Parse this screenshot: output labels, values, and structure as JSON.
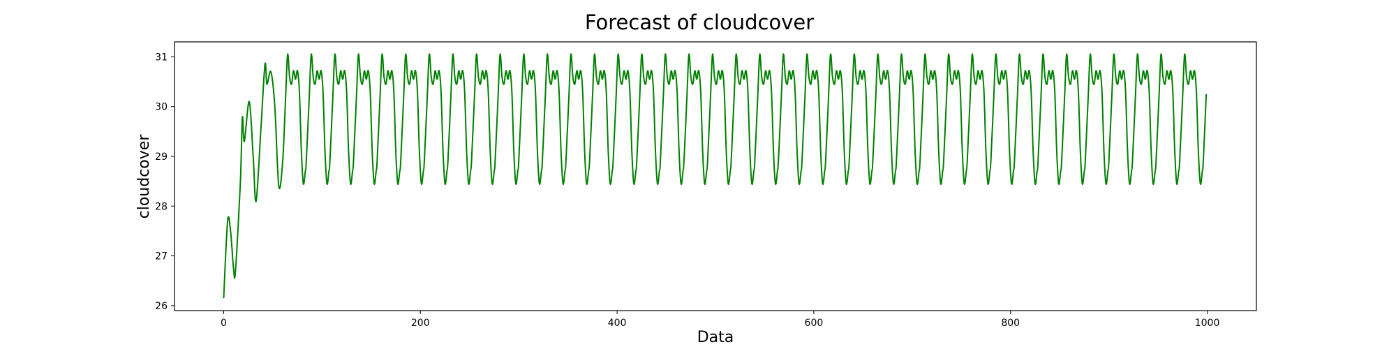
{
  "chart_data": {
    "type": "line",
    "title": "Forecast of cloudcover",
    "xlabel": "Data",
    "ylabel": "cloudcover",
    "xlim": [
      -50,
      1050
    ],
    "ylim": [
      25.9,
      31.3
    ],
    "xticks": [
      0,
      200,
      400,
      600,
      800,
      1000
    ],
    "xtick_labels": [
      "0",
      "200",
      "400",
      "600",
      "800",
      "1000"
    ],
    "yticks": [
      26,
      27,
      28,
      29,
      30,
      31
    ],
    "ytick_labels": [
      "26",
      "27",
      "28",
      "29",
      "30",
      "31"
    ],
    "grid": false,
    "colors": {
      "line": "#008000",
      "frame": "#000000",
      "background": "#ffffff"
    },
    "series": [
      {
        "x_start": 0,
        "x_step": 1,
        "x_end": 999,
        "period": 24,
        "key_points": [
          [
            0,
            26.15
          ],
          [
            4,
            27.7
          ],
          [
            7,
            27.5
          ],
          [
            10,
            26.75
          ],
          [
            12,
            26.7
          ],
          [
            17,
            28.5
          ],
          [
            19,
            29.78
          ],
          [
            21,
            29.3
          ],
          [
            26,
            30.1
          ],
          [
            30,
            29.0
          ],
          [
            33,
            28.1
          ],
          [
            38,
            29.6
          ],
          [
            42,
            30.85
          ],
          [
            44,
            30.45
          ],
          [
            48,
            30.7
          ],
          [
            52,
            30.0
          ],
          [
            56,
            28.4
          ]
        ],
        "cycle_start": 60,
        "cycle_shape": [
          [
            0,
            28.9
          ],
          [
            3,
            30.2
          ],
          [
            5,
            31.05
          ],
          [
            7,
            30.6
          ],
          [
            9,
            30.45
          ],
          [
            11,
            30.72
          ],
          [
            13,
            30.55
          ],
          [
            15,
            30.72
          ],
          [
            17,
            30.3
          ],
          [
            19,
            29.1
          ],
          [
            21,
            28.45
          ],
          [
            23,
            28.7
          ],
          [
            24,
            28.9
          ]
        ],
        "last_point": [
          999,
          30.25
        ]
      }
    ]
  }
}
